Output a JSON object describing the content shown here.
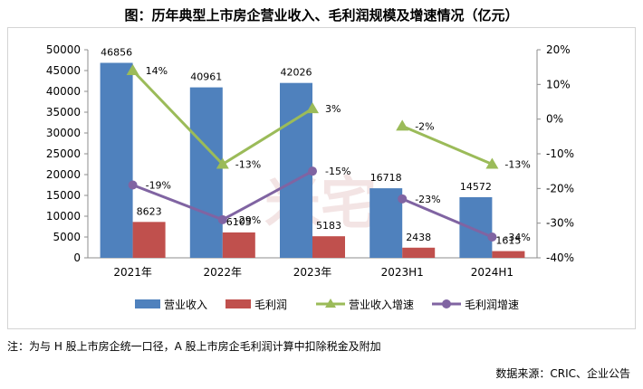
{
  "title": "图：历年典型上市房企营业收入、毛利润规模及增速情况（亿元）",
  "footnote": "注：为与 H 股上市房企统一口径，A 股上市房企毛利润计算中扣除税金及附加",
  "source": "数据来源：CRIC、企业公告",
  "watermark": "米宅",
  "chart_data": {
    "type": "bar",
    "categories": [
      "2021年",
      "2022年",
      "2023年",
      "2023H1",
      "2024H1"
    ],
    "series": [
      {
        "name": "营业收入",
        "kind": "bar",
        "axis": "left",
        "color": "#4f81bd",
        "values": [
          46856,
          40961,
          42026,
          16718,
          14572
        ],
        "labels": [
          "46856",
          "40961",
          "42026",
          "16718",
          "14572"
        ]
      },
      {
        "name": "毛利润",
        "kind": "bar",
        "axis": "left",
        "color": "#c0504d",
        "values": [
          8623,
          6105,
          5183,
          2438,
          1615
        ],
        "labels": [
          "8623",
          "6105",
          "5183",
          "2438",
          "1615"
        ]
      },
      {
        "name": "营业收入增速",
        "kind": "line",
        "axis": "right",
        "color": "#9bbb59",
        "marker": "triangle",
        "values": [
          14,
          -13,
          3,
          -2,
          -13
        ],
        "labels": [
          "14%",
          "-13%",
          "3%",
          "-2%",
          "-13%"
        ],
        "segments": [
          [
            0,
            1,
            2
          ],
          [
            3,
            4
          ]
        ]
      },
      {
        "name": "毛利润增速",
        "kind": "line",
        "axis": "right",
        "color": "#8064a2",
        "marker": "circle",
        "values": [
          -19,
          -29,
          -15,
          -23,
          -34
        ],
        "labels": [
          "-19%",
          "-29%",
          "-15%",
          "-23%",
          "-34%"
        ],
        "segments": [
          [
            0,
            1,
            2
          ],
          [
            3,
            4
          ]
        ]
      }
    ],
    "y_left": {
      "min": 0,
      "max": 50000,
      "step": 5000,
      "ticks": [
        "0",
        "5000",
        "10000",
        "15000",
        "20000",
        "25000",
        "30000",
        "35000",
        "40000",
        "45000",
        "50000"
      ]
    },
    "y_right": {
      "min": -40,
      "max": 20,
      "step": 10,
      "ticks": [
        "-40%",
        "-30%",
        "-20%",
        "-10%",
        "0%",
        "10%",
        "20%"
      ]
    },
    "grid": false,
    "legend_position": "bottom"
  }
}
